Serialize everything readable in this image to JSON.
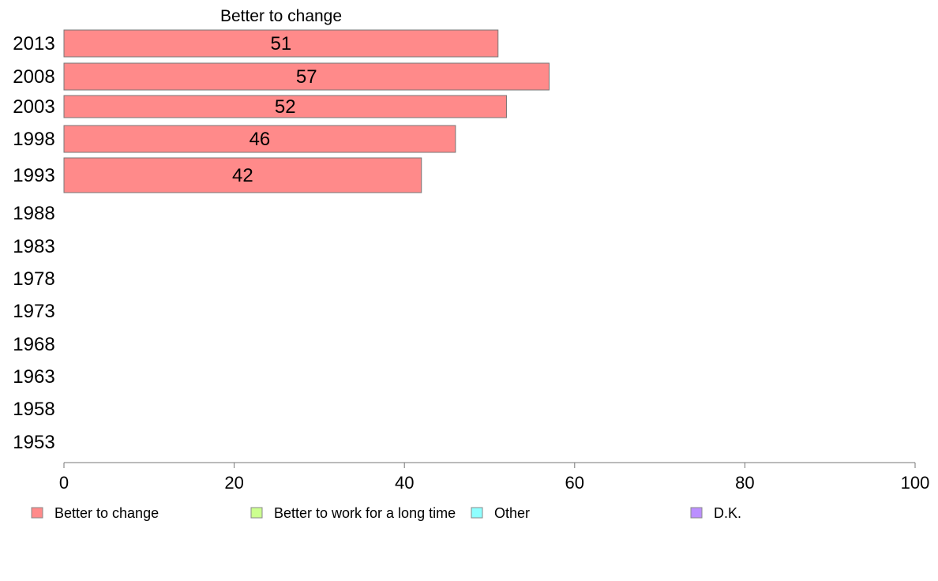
{
  "chart_data": {
    "type": "bar",
    "orientation": "horizontal",
    "title": "Better to change",
    "categories": [
      "2013",
      "2008",
      "2003",
      "1998",
      "1993",
      "1988",
      "1983",
      "1978",
      "1973",
      "1968",
      "1963",
      "1958",
      "1953"
    ],
    "series": [
      {
        "name": "Better to change",
        "values": [
          51,
          57,
          52,
          46,
          42,
          null,
          null,
          null,
          null,
          null,
          null,
          null,
          null
        ]
      }
    ],
    "xlim": [
      0,
      100
    ],
    "xticks": [
      0,
      20,
      40,
      60,
      80,
      100
    ],
    "grid": false,
    "legend": {
      "position": "bottom",
      "items": [
        {
          "label": "Better to change",
          "color": "#ff8a8a"
        },
        {
          "label": "Better to work for a long time",
          "color": "#ccff8f"
        },
        {
          "label": "Other",
          "color": "#8fffff"
        },
        {
          "label": "D.K.",
          "color": "#bb8fff"
        }
      ]
    },
    "colors": {
      "bar": "#ff8a8a",
      "bar_stroke": "#777777",
      "axis": "#777777"
    }
  }
}
